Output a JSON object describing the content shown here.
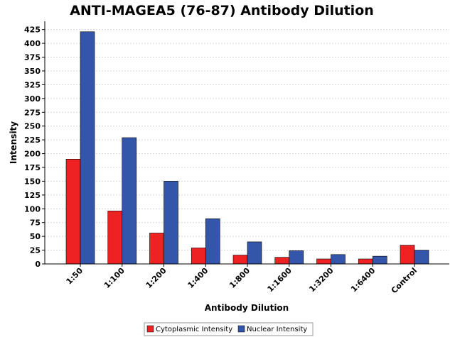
{
  "chart_data": {
    "type": "bar",
    "title": "ANTI-MAGEA5 (76-87) Antibody Dilution",
    "xlabel": "Antibody Dilution",
    "ylabel": "Intensity",
    "categories": [
      "1:50",
      "1:100",
      "1:200",
      "1:400",
      "1:800",
      "1:1600",
      "1:3200",
      "1:6400",
      "Control"
    ],
    "series": [
      {
        "name": "Cytoplasmic Intensity",
        "color": "#ee2222",
        "values": [
          190,
          96,
          56,
          29,
          16,
          12,
          9,
          9,
          34
        ]
      },
      {
        "name": "Nuclear Intensity",
        "color": "#3355aa",
        "values": [
          421,
          229,
          150,
          82,
          40,
          24,
          17,
          14,
          25
        ]
      }
    ],
    "yticks": [
      0,
      25,
      50,
      75,
      100,
      125,
      150,
      175,
      200,
      225,
      250,
      275,
      300,
      325,
      350,
      375,
      400,
      425
    ],
    "ylim": [
      0,
      440
    ],
    "grid": true,
    "legend_position": "bottom"
  }
}
